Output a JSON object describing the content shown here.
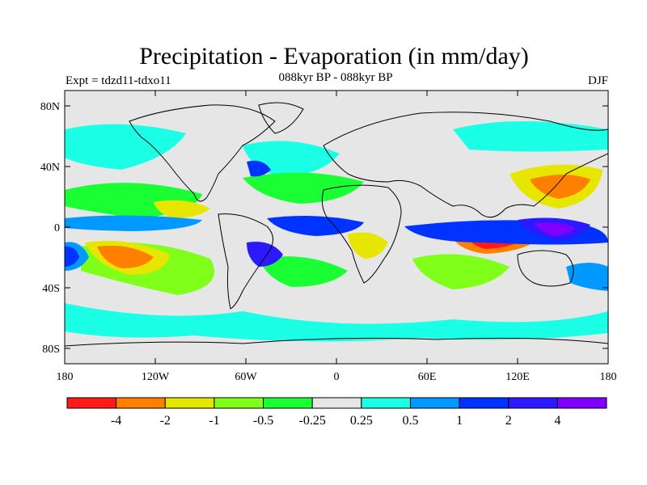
{
  "title": "Precipitation - Evaporation (in mm/day)",
  "subtitle": "088kyr BP - 088kyr BP",
  "experiment_label": "Expt = tdzd11-tdxo11",
  "season": "DJF",
  "lat_ticks": [
    "80N",
    "40N",
    "0",
    "40S",
    "80S"
  ],
  "lon_ticks": [
    "180",
    "120W",
    "60W",
    "0",
    "60E",
    "120E",
    "180"
  ],
  "colorbar": {
    "labels": [
      "-4",
      "-2",
      "-1",
      "-0.5",
      "-0.25",
      "0.25",
      "0.5",
      "1",
      "2",
      "4"
    ],
    "colors": [
      "#ff1a1a",
      "#ff8000",
      "#e6e600",
      "#80ff1a",
      "#1aff33",
      "#e6e6e6",
      "#1affe6",
      "#0099ff",
      "#0033ff",
      "#2b1aff",
      "#8000ff"
    ]
  },
  "colors": {
    "land_outline": "#000000",
    "background_field": "#e6e6e6"
  }
}
